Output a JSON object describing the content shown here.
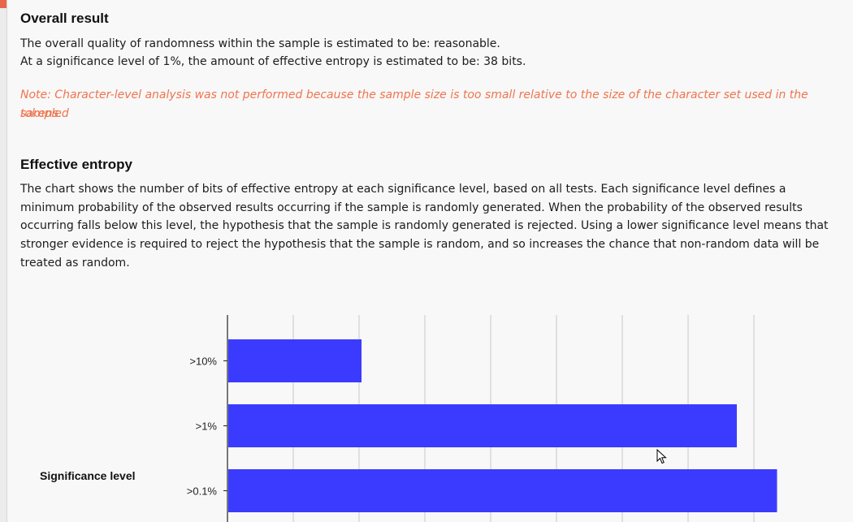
{
  "sections": {
    "overall": {
      "heading": "Overall result",
      "line1": "The overall quality of randomness within the sample is estimated to be: reasonable.",
      "line2": "At a significance level of 1%, the amount of effective entropy is estimated to be: 38 bits.",
      "note_line1": "Note: Character-level analysis was not performed because the sample size is too small relative to the size of the character set used in the sampled",
      "note_line2": "tokens."
    },
    "entropy": {
      "heading": "Effective entropy",
      "lines": [
        "The chart shows the number of bits of effective entropy at each significance level, based on all tests. Each significance level defines a",
        "minimum probability of the observed results occurring if the sample is randomly generated. When the probability of the observed results",
        "occurring falls below this level, the hypothesis that the sample is randomly generated is rejected. Using a lower significance level means that",
        "stronger evidence is required to reject the hypothesis that the sample is random, and so increases the chance that non-random data will be",
        "treated as random."
      ]
    }
  },
  "chart_data": {
    "type": "bar",
    "orientation": "horizontal",
    "ylabel": "Significance level",
    "categories": [
      ">10%",
      ">1%",
      ">0.1%"
    ],
    "values": [
      10,
      38,
      41
    ],
    "xlim": [
      0,
      44
    ],
    "bar_color": "#3b3bff",
    "grid": true
  },
  "colors": {
    "note": "#f0744e",
    "bar": "#3b3bff",
    "grid": "#c8c8c8"
  }
}
